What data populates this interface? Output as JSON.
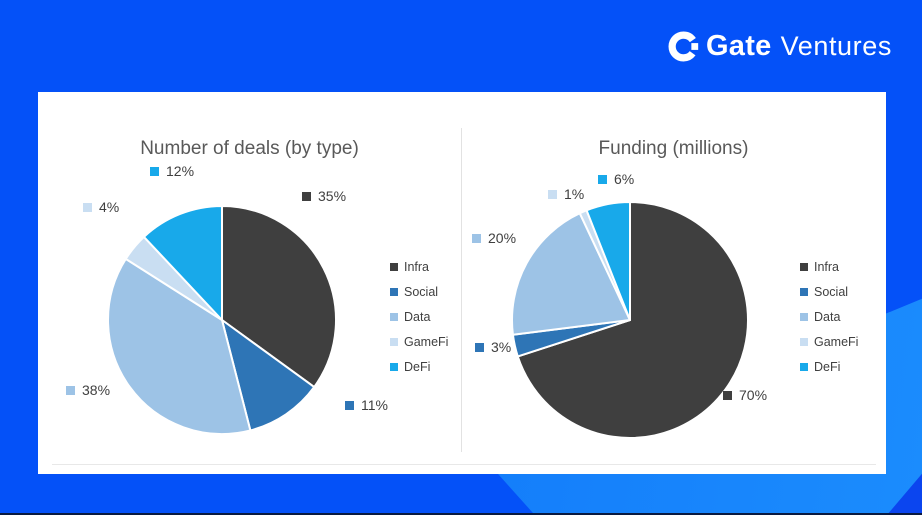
{
  "brand": {
    "name_bold": "Gate",
    "name_light": "Ventures"
  },
  "palette": {
    "background": "#0451f8",
    "band_light_start": "#0b6cf7",
    "band_light_end": "#1b8cfd",
    "corner_accent": "#0b45ef",
    "bottom_edge": "#0a1a40",
    "card": "#ffffff",
    "title_text": "#595959",
    "label_text": "#3f3f3f",
    "divider": "#e2e2e2"
  },
  "category_colors": [
    "#3f3f3f",
    "#2e75b6",
    "#9dc3e6",
    "#c9def2",
    "#18a9ea"
  ],
  "chart_data": [
    {
      "type": "pie",
      "title": "Number of deals (by type)",
      "categories": [
        "Infra",
        "Social",
        "Data",
        "GameFi",
        "DeFi"
      ],
      "values": [
        35,
        11,
        38,
        4,
        12
      ],
      "labels": [
        "35%",
        "11%",
        "38%",
        "4%",
        "12%"
      ],
      "legend_position": "right",
      "start_angle": "12 o'clock",
      "direction": "clockwise"
    },
    {
      "type": "pie",
      "title": "Funding (millions)",
      "categories": [
        "Infra",
        "Social",
        "Data",
        "GameFi",
        "DeFi"
      ],
      "values": [
        70,
        3,
        20,
        1,
        6
      ],
      "labels": [
        "70%",
        "3%",
        "20%",
        "1%",
        "6%"
      ],
      "legend_position": "right",
      "start_angle": "12 o'clock",
      "direction": "clockwise"
    }
  ]
}
